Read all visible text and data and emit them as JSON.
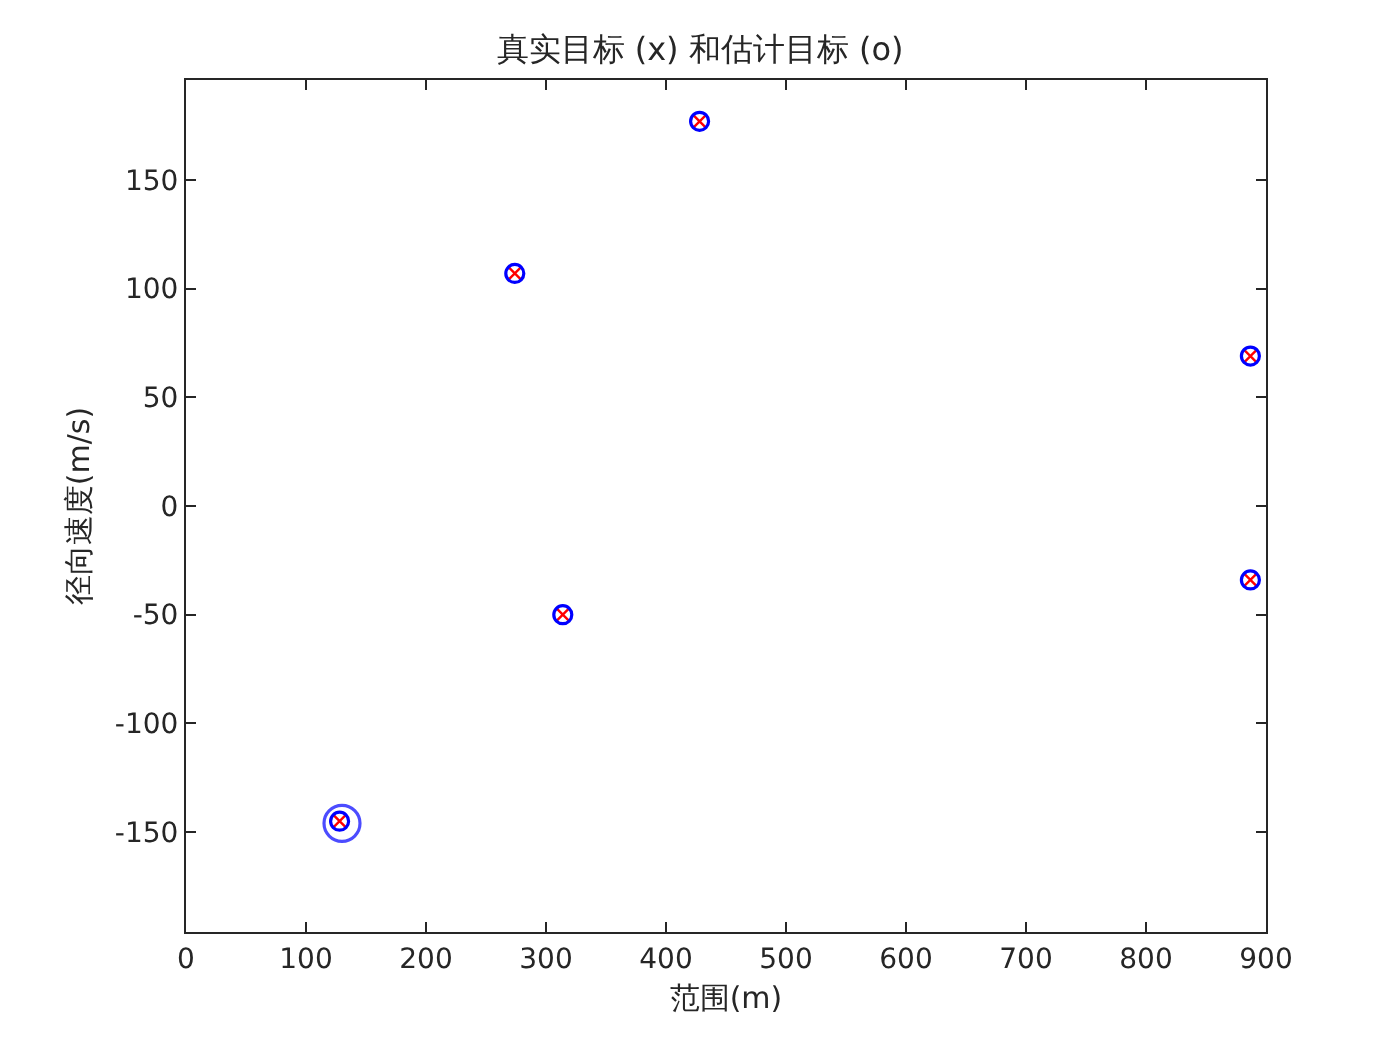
{
  "chart_data": {
    "type": "scatter",
    "title": "真实目标 (x) 和估计目标 (o)",
    "xlabel": "范围(m)",
    "ylabel": "径向速度(m/s)",
    "xlim": [
      0,
      900
    ],
    "xticks": [
      0,
      100,
      200,
      300,
      400,
      500,
      600,
      700,
      800,
      900
    ],
    "ylim": [
      -196,
      196
    ],
    "yticks": [
      -150,
      -100,
      -50,
      0,
      50,
      100,
      150
    ],
    "grid": false,
    "series": [
      {
        "color": "#ff0000",
        "marker": "cross",
        "x": [
          274,
          428,
          314,
          887,
          887,
          128
        ],
        "values": [
          107,
          177,
          -50,
          69,
          -34,
          -145
        ]
      },
      {
        "color": "#0000ff",
        "marker": "circle",
        "x": [
          274,
          428,
          314,
          887,
          887,
          128
        ],
        "values": [
          107,
          177,
          -50,
          69,
          -34,
          -145
        ]
      },
      {
        "type": "bubble",
        "color": "#0000ff",
        "marker": "circle",
        "x": [
          130
        ],
        "values": [
          -146
        ],
        "sizes": [
          1
        ]
      }
    ]
  }
}
